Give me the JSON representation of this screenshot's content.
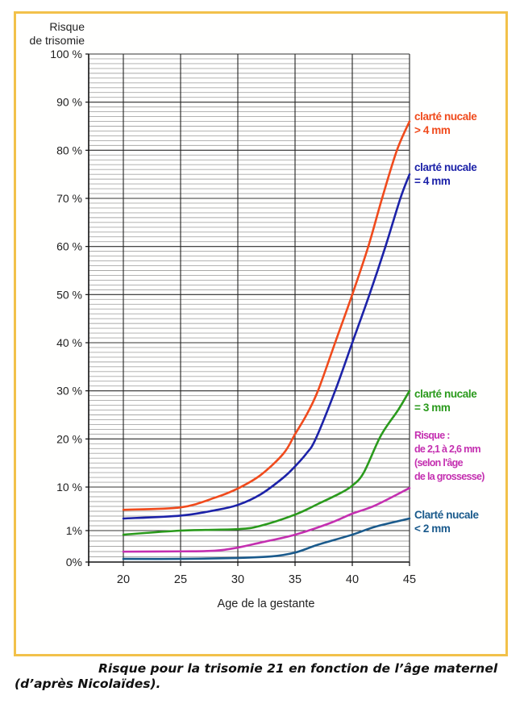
{
  "chart_data": {
    "type": "line",
    "title": "",
    "ylabel": "Risque de trisomie",
    "ylabel_lines": [
      "Risque",
      "de trisomie"
    ],
    "xlabel": "Age de la gestante",
    "xlim": [
      17,
      45
    ],
    "ylim": [
      0,
      100
    ],
    "y_scale": "piecewise (0%–1% and 1%–10% expanded)",
    "grid": true,
    "x_ticks": [
      20,
      25,
      30,
      35,
      40,
      45
    ],
    "x_tick_labels": [
      "20",
      "25",
      "30",
      "35",
      "40",
      "45"
    ],
    "y_ticks": [
      {
        "value": 100,
        "label": "100 %"
      },
      {
        "value": 90,
        "label": "90 %"
      },
      {
        "value": 80,
        "label": "80 %"
      },
      {
        "value": 70,
        "label": "70 %"
      },
      {
        "value": 60,
        "label": "60 %"
      },
      {
        "value": 50,
        "label": "50 %"
      },
      {
        "value": 40,
        "label": "40 %"
      },
      {
        "value": 30,
        "label": "30 %"
      },
      {
        "value": 20,
        "label": "20 %"
      },
      {
        "value": 10,
        "label": "10 %"
      },
      {
        "value": 1,
        "label": "1%"
      },
      {
        "value": 0,
        "label": "0%"
      }
    ],
    "series": [
      {
        "name": "clarté nucale > 4 mm",
        "legend_lines": [
          "clarté nucale",
          "> 4 mm"
        ],
        "color": "#f04a1c",
        "x": [
          20,
          25,
          28,
          30,
          32,
          34,
          35,
          36,
          37,
          38.5,
          40,
          41.4,
          42.6,
          43.9,
          45
        ],
        "y": [
          5.3,
          5.8,
          7.8,
          9.7,
          12.5,
          17,
          21,
          25,
          30,
          40,
          50,
          60,
          70,
          80,
          86
        ]
      },
      {
        "name": "clarté nucale = 4 mm",
        "legend_lines": [
          "clarté nucale",
          "= 4 mm"
        ],
        "color": "#1c22a8",
        "x": [
          20,
          25,
          28,
          30,
          32,
          34,
          35,
          36,
          36.8,
          38.5,
          40,
          41.5,
          42.9,
          44.2,
          45
        ],
        "y": [
          3.5,
          4.1,
          5.2,
          6.3,
          8.5,
          12,
          14.3,
          17,
          20,
          30,
          40,
          50,
          60,
          70,
          75
        ]
      },
      {
        "name": "clarté nucale = 3 mm",
        "legend_lines": [
          "clarté nucale",
          "= 3 mm"
        ],
        "color": "#2a9a1c",
        "x": [
          20,
          25,
          30,
          32,
          35,
          37,
          39,
          40,
          41,
          42.5,
          44,
          45
        ],
        "y": [
          0.87,
          1.0,
          1.3,
          2.0,
          4.3,
          6.5,
          8.8,
          10.3,
          13,
          20.7,
          26,
          30
        ]
      },
      {
        "name": "Risque : de 2,1 à 2,6 mm (selon l'âge de la grossesse)",
        "legend_lines": [
          "Risque :",
          "de 2,1 à 2,6 mm",
          "(selon l'âge",
          "de la grossesse)"
        ],
        "color": "#c42fb0",
        "x": [
          20,
          25,
          28,
          30,
          32,
          35,
          38,
          40,
          42,
          45
        ],
        "y": [
          0.33,
          0.34,
          0.36,
          0.46,
          0.62,
          0.87,
          2.5,
          4.5,
          6.2,
          9.8
        ]
      },
      {
        "name": "Clarté nucale < 2 mm",
        "legend_lines": [
          "Clarté nucale",
          "< 2 mm"
        ],
        "color": "#1a5a8c",
        "x": [
          20,
          25,
          30,
          33,
          35,
          37,
          40,
          42,
          45
        ],
        "y": [
          0.1,
          0.1,
          0.13,
          0.18,
          0.3,
          0.55,
          0.87,
          1.8,
          3.5
        ]
      }
    ]
  },
  "caption": "Risque pour la trisomie 21 en fonction de l’âge maternel (d’après Nicolaïdes).",
  "colors": {
    "frame": "#f2c14a",
    "grid_major": "#333333",
    "grid_minor": "#9a9a9a"
  }
}
